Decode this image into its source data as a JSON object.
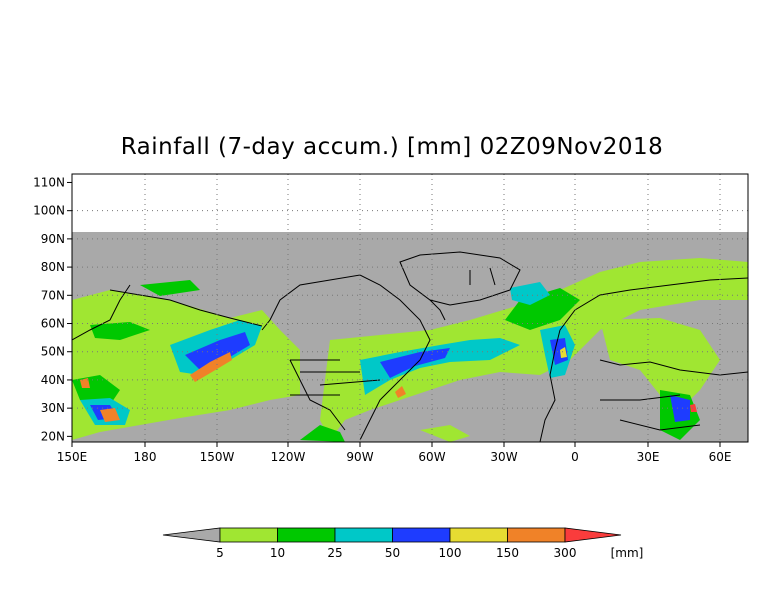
{
  "title": "Rainfall (7-day accum.) [mm] 02Z09Nov2018",
  "map": {
    "lat_labels": [
      "110N",
      "100N",
      "90N",
      "80N",
      "70N",
      "60N",
      "50N",
      "40N",
      "30N",
      "20N"
    ],
    "lon_labels": [
      "150E",
      "180",
      "150W",
      "120W",
      "90W",
      "60W",
      "30W",
      "0",
      "30E",
      "60E"
    ],
    "no_data_color": "#a9a9a9",
    "data_domain": "90N to 18N, 150E eastward to 70E"
  },
  "colorbar": {
    "colors": [
      "#a9a9a9",
      "#a0e632",
      "#00c800",
      "#00c8c8",
      "#1e3cff",
      "#e6dc32",
      "#f08228",
      "#fa3c3c"
    ],
    "labels": [
      "5",
      "10",
      "25",
      "50",
      "100",
      "150",
      "300"
    ],
    "unit": "[mm]"
  }
}
